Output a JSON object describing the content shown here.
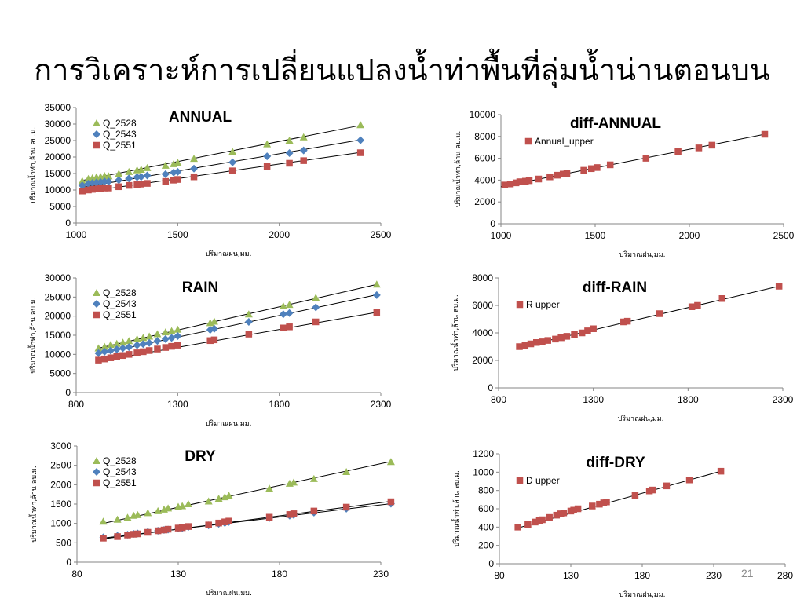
{
  "slide": {
    "title": "การวิเคราะห์การเปลี่ยนแปลงน้ำท่าพื้นที่ลุ่มน้ำน่านตอนบน",
    "number": "21"
  },
  "colors": {
    "green": "#9bbb59",
    "blue": "#4f81bd",
    "red": "#c0504d",
    "axis": "#868686",
    "trend": "#000000"
  },
  "chart_data": [
    {
      "type": "scatter",
      "title": "ANNUAL",
      "xlabel": "ปริมาณฝน,มม.",
      "ylabel": "ปริมาณน้ำท่า,ล้าน ลบ.ม.",
      "xlim": [
        1000,
        2500
      ],
      "xticks": [
        1000,
        1500,
        2000,
        2500
      ],
      "ylim": [
        0,
        35000
      ],
      "yticks": [
        0,
        5000,
        10000,
        15000,
        20000,
        25000,
        30000,
        35000
      ],
      "legend_position": "top-left",
      "x": [
        1030,
        1060,
        1080,
        1100,
        1120,
        1140,
        1160,
        1210,
        1260,
        1300,
        1320,
        1350,
        1440,
        1480,
        1500,
        1580,
        1770,
        1940,
        2050,
        2120,
        2400
      ],
      "series": [
        {
          "name": "Q_2528",
          "marker": "triangle",
          "values": [
            12700,
            13400,
            13600,
            13900,
            14000,
            14300,
            14200,
            14900,
            15500,
            16000,
            16200,
            16700,
            17400,
            17900,
            18300,
            19500,
            21600,
            23900,
            25000,
            26000,
            29700
          ],
          "trend": [
            [
              1030,
              12900
            ],
            [
              2400,
              29600
            ]
          ]
        },
        {
          "name": "Q_2543",
          "marker": "diamond",
          "values": [
            11400,
            11900,
            12100,
            12300,
            12400,
            12600,
            12600,
            13000,
            13500,
            13900,
            14000,
            14400,
            14800,
            15300,
            15500,
            16500,
            18400,
            20200,
            21200,
            22000,
            25100
          ],
          "trend": [
            [
              1030,
              10800
            ],
            [
              2400,
              25200
            ]
          ]
        },
        {
          "name": "Q_2551",
          "marker": "square",
          "values": [
            9700,
            10000,
            10200,
            10300,
            10500,
            10600,
            10600,
            11000,
            11400,
            11600,
            11800,
            12000,
            12600,
            13000,
            13200,
            14000,
            15800,
            17200,
            18100,
            18900,
            21300
          ],
          "trend": [
            [
              1030,
              9300
            ],
            [
              2400,
              21400
            ]
          ]
        }
      ]
    },
    {
      "type": "scatter",
      "title": "diff-ANNUAL",
      "xlabel": "ปริมาณฝน,มม.",
      "ylabel": "ปริมาณน้ำท่า,ล้าน ลบ.ม.",
      "xlim": [
        1000,
        2500
      ],
      "xticks": [
        1000,
        1500,
        2000,
        2500
      ],
      "ylim": [
        0,
        10000
      ],
      "yticks": [
        0,
        2000,
        4000,
        6000,
        8000,
        10000
      ],
      "legend_position": "top-left",
      "x": [
        1020,
        1050,
        1080,
        1100,
        1130,
        1150,
        1200,
        1260,
        1300,
        1330,
        1350,
        1440,
        1480,
        1510,
        1580,
        1770,
        1940,
        2050,
        2120,
        2400
      ],
      "series": [
        {
          "name": "Annual_upper",
          "marker": "square",
          "values": [
            3550,
            3650,
            3750,
            3850,
            3900,
            3950,
            4100,
            4300,
            4450,
            4550,
            4600,
            4900,
            5050,
            5150,
            5400,
            6000,
            6600,
            6950,
            7200,
            8200
          ],
          "trend": [
            [
              1000,
              3400
            ],
            [
              2400,
              8200
            ]
          ]
        }
      ]
    },
    {
      "type": "scatter",
      "title": "RAIN",
      "xlabel": "ปริมาณฝน,มม.",
      "ylabel": "ปริมาณน้ำท่า,ล้าน ลบ.ม.",
      "xlim": [
        800,
        2300
      ],
      "xticks": [
        800,
        1300,
        1800,
        2300
      ],
      "ylim": [
        0,
        30000
      ],
      "yticks": [
        0,
        5000,
        10000,
        15000,
        20000,
        25000,
        30000
      ],
      "legend_position": "top-left",
      "x": [
        910,
        940,
        970,
        1000,
        1030,
        1060,
        1100,
        1130,
        1160,
        1200,
        1240,
        1270,
        1300,
        1460,
        1480,
        1650,
        1820,
        1850,
        1980,
        2280
      ],
      "series": [
        {
          "name": "Q_2528",
          "marker": "triangle",
          "values": [
            11600,
            12000,
            12500,
            12800,
            13100,
            13500,
            14000,
            14300,
            14700,
            15300,
            15800,
            16100,
            16500,
            18200,
            18600,
            20500,
            22600,
            23000,
            24800,
            28300
          ],
          "trend": [
            [
              910,
              11600
            ],
            [
              2280,
              28300
            ]
          ]
        },
        {
          "name": "Q_2543",
          "marker": "diamond",
          "values": [
            10300,
            10700,
            11000,
            11300,
            11600,
            11900,
            12400,
            12700,
            13000,
            13500,
            14000,
            14300,
            14800,
            16400,
            16700,
            18500,
            20500,
            20800,
            22300,
            25500
          ],
          "trend": [
            [
              910,
              10100
            ],
            [
              2280,
              25600
            ]
          ]
        },
        {
          "name": "Q_2551",
          "marker": "square",
          "values": [
            8500,
            8800,
            9100,
            9400,
            9700,
            10000,
            10400,
            10700,
            11000,
            11400,
            11800,
            12100,
            12400,
            13600,
            13800,
            15300,
            16900,
            17200,
            18500,
            21000
          ],
          "trend": [
            [
              910,
              8200
            ],
            [
              2280,
              21000
            ]
          ]
        }
      ]
    },
    {
      "type": "scatter",
      "title": "diff-RAIN",
      "xlabel": "ปริมาณฝน,มม.",
      "ylabel": "ปริมาณน้ำท่า,ล้าน ลบ.ม.",
      "xlim": [
        800,
        2300
      ],
      "xticks": [
        800,
        1300,
        1800,
        2300
      ],
      "ylim": [
        0,
        8000
      ],
      "yticks": [
        0,
        2000,
        4000,
        6000,
        8000
      ],
      "legend_position": "top-left",
      "x": [
        910,
        940,
        970,
        1000,
        1030,
        1060,
        1100,
        1130,
        1160,
        1200,
        1240,
        1270,
        1300,
        1460,
        1480,
        1650,
        1820,
        1850,
        1980,
        2280
      ],
      "series": [
        {
          "name": "R upper",
          "marker": "square",
          "values": [
            3000,
            3100,
            3200,
            3300,
            3350,
            3450,
            3550,
            3650,
            3750,
            3900,
            4000,
            4150,
            4300,
            4800,
            4850,
            5400,
            5900,
            6000,
            6500,
            7400
          ],
          "trend": [
            [
              910,
              2950
            ],
            [
              2280,
              7400
            ]
          ]
        }
      ]
    },
    {
      "type": "scatter",
      "title": "DRY",
      "xlabel": "ปริมาณฝน,มม.",
      "ylabel": "ปริมาณน้ำท่า,ล้าน ลบ.ม.",
      "xlim": [
        80,
        230
      ],
      "xticks": [
        80,
        130,
        180,
        230
      ],
      "ylim": [
        0,
        3000
      ],
      "yticks": [
        0,
        500,
        1000,
        1500,
        2000,
        2500,
        3000
      ],
      "legend_position": "top-left",
      "x": [
        93,
        100,
        105,
        108,
        110,
        115,
        120,
        123,
        125,
        130,
        132,
        135,
        145,
        150,
        153,
        155,
        175,
        185,
        187,
        197,
        213,
        235
      ],
      "series": [
        {
          "name": "Q_2528",
          "marker": "triangle",
          "values": [
            1050,
            1100,
            1150,
            1200,
            1220,
            1270,
            1320,
            1360,
            1390,
            1430,
            1450,
            1500,
            1570,
            1640,
            1680,
            1720,
            1900,
            2030,
            2060,
            2150,
            2330,
            2590
          ],
          "trend": [
            [
              93,
              1000
            ],
            [
              235,
              2600
            ]
          ]
        },
        {
          "name": "Q_2543",
          "marker": "diamond",
          "values": [
            640,
            680,
            710,
            730,
            740,
            780,
            810,
            830,
            840,
            870,
            880,
            910,
            950,
            990,
            1010,
            1040,
            1140,
            1200,
            1220,
            1280,
            1380,
            1510
          ],
          "trend": [
            [
              93,
              620
            ],
            [
              235,
              1510
            ]
          ]
        },
        {
          "name": "Q_2551",
          "marker": "square",
          "values": [
            620,
            660,
            700,
            720,
            730,
            770,
            810,
            830,
            850,
            880,
            890,
            920,
            960,
            1010,
            1040,
            1060,
            1160,
            1230,
            1250,
            1320,
            1420,
            1560
          ],
          "trend": [
            [
              93,
              600
            ],
            [
              235,
              1570
            ]
          ]
        }
      ]
    },
    {
      "type": "scatter",
      "title": "diff-DRY",
      "xlabel": "ปริมาณฝน,มม.",
      "ylabel": "ปริมาณน้ำท่า,ล้าน ลบ.ม.",
      "xlim": [
        80,
        280
      ],
      "xticks": [
        80,
        130,
        180,
        230,
        280
      ],
      "ylim": [
        0,
        1200
      ],
      "yticks": [
        0,
        200,
        400,
        600,
        800,
        1000,
        1200
      ],
      "legend_position": "top-left",
      "x": [
        93,
        100,
        105,
        108,
        110,
        115,
        120,
        123,
        125,
        130,
        132,
        135,
        145,
        150,
        153,
        155,
        175,
        185,
        187,
        197,
        213,
        235
      ],
      "series": [
        {
          "name": "D upper",
          "marker": "square",
          "values": [
            400,
            430,
            455,
            470,
            480,
            505,
            530,
            545,
            555,
            575,
            585,
            600,
            630,
            650,
            665,
            675,
            745,
            795,
            805,
            850,
            915,
            1010
          ],
          "trend": [
            [
              93,
              390
            ],
            [
              235,
              1010
            ]
          ]
        }
      ]
    }
  ]
}
